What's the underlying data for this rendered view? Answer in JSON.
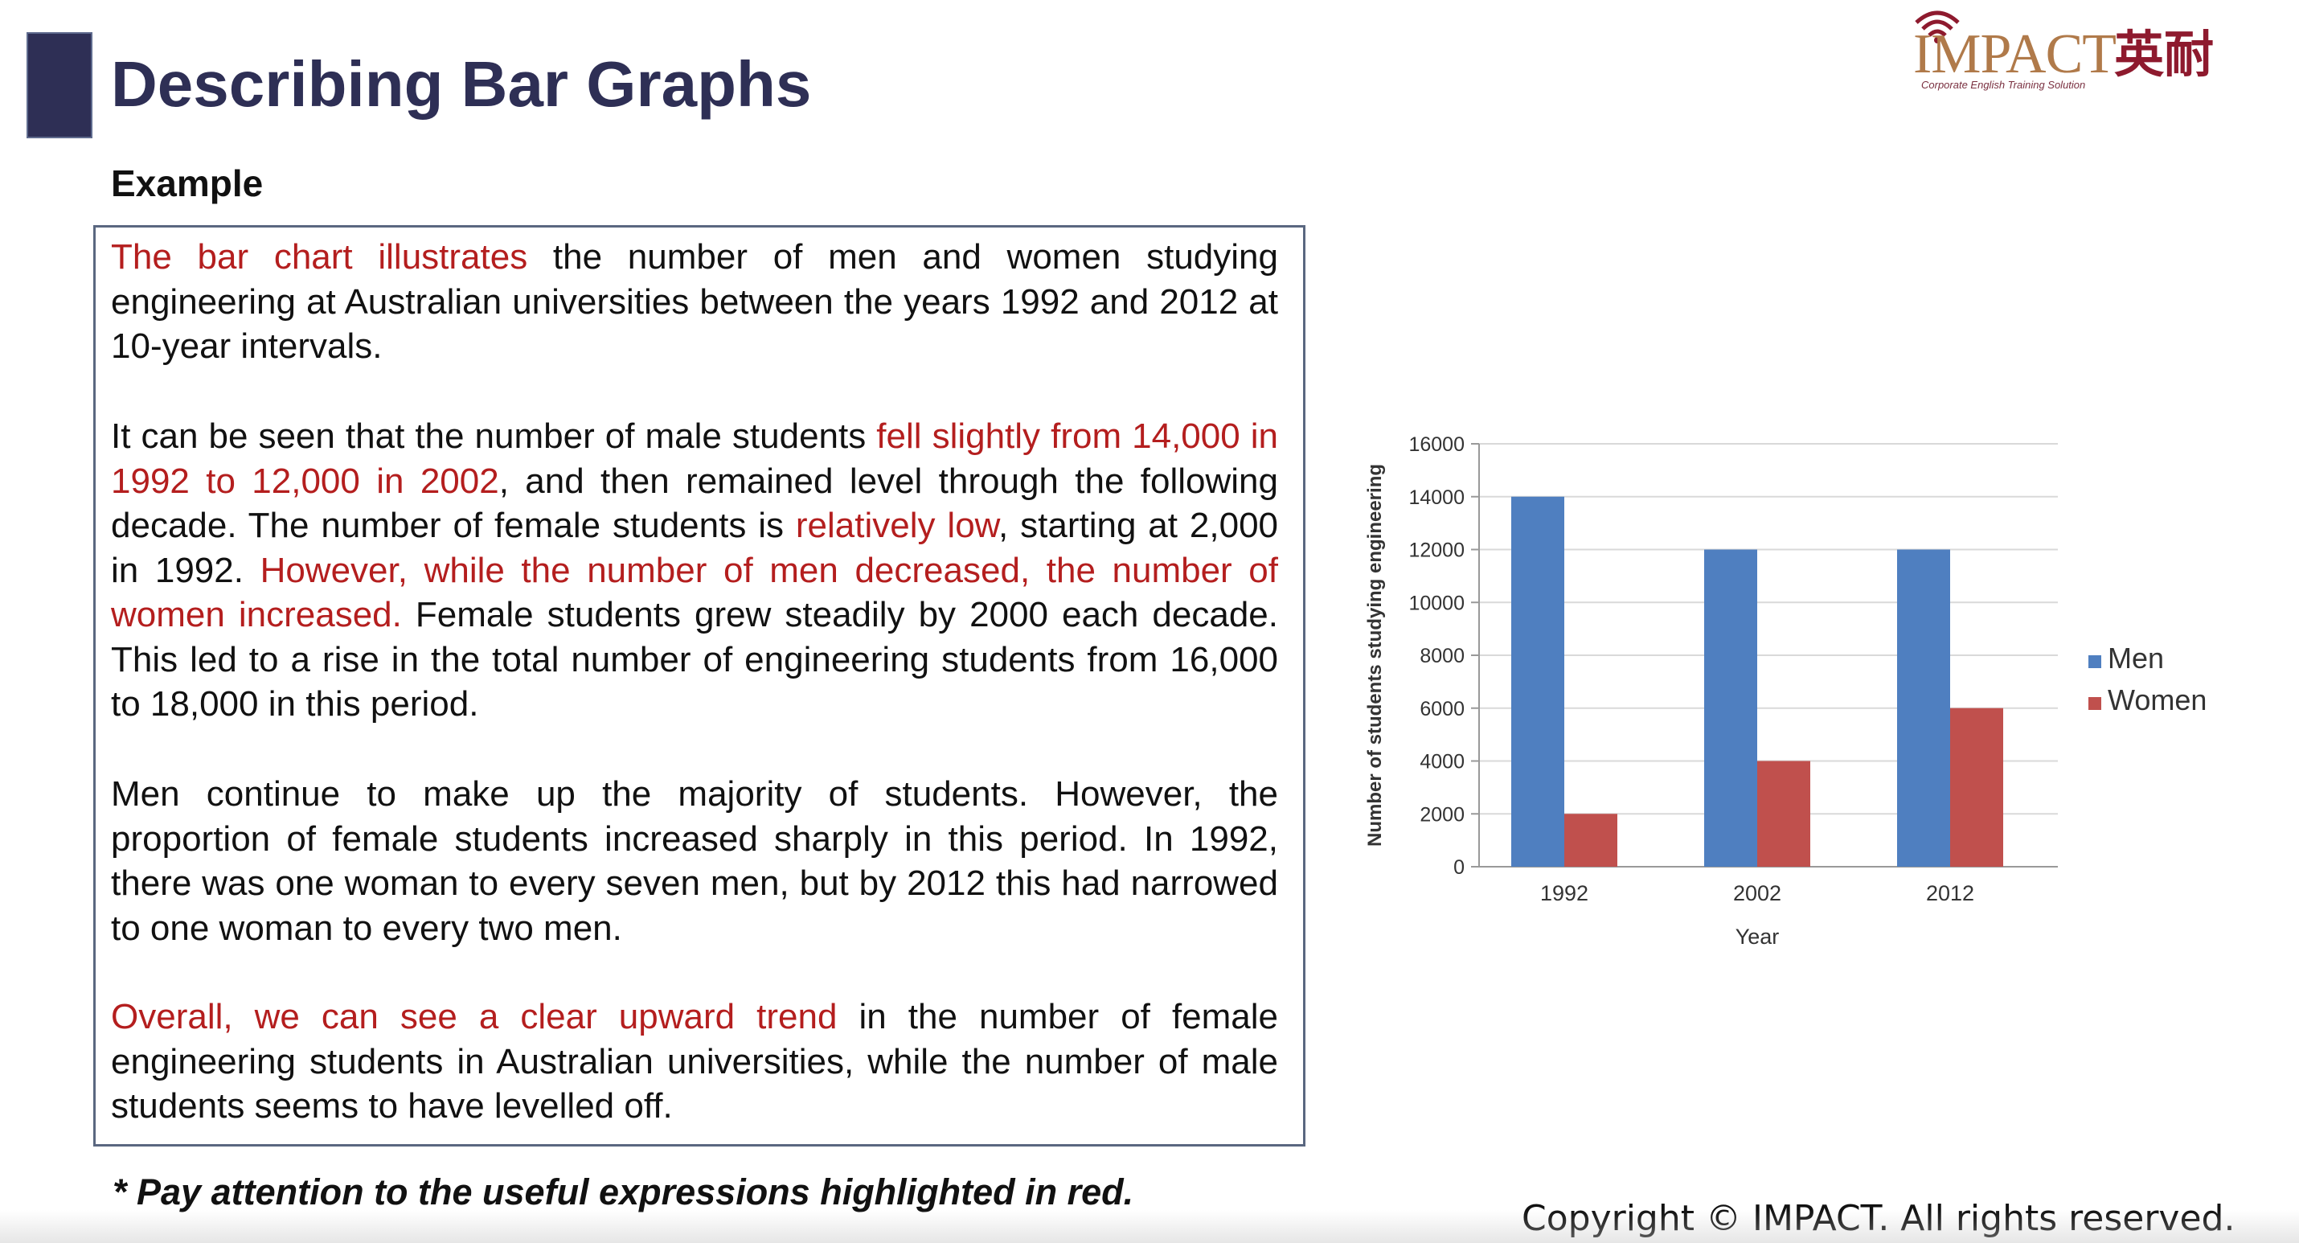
{
  "header": {
    "title": "Describing Bar Graphs"
  },
  "logo": {
    "brand": "IMPACT",
    "chinese": "英耐",
    "tagline": "Corporate English Training Solution"
  },
  "section": {
    "label": "Example"
  },
  "paragraphs": [
    [
      {
        "text": "The bar chart illustrates",
        "highlight": true
      },
      {
        "text": " the number of men and women studying engineering at Australian universities between the years 1992 and 2012 at 10-year intervals.",
        "highlight": false
      }
    ],
    [
      {
        "text": "It can be seen that the number of male students ",
        "highlight": false
      },
      {
        "text": "fell slightly from 14,000 in 1992 to 12,000 in 2002",
        "highlight": true
      },
      {
        "text": ", and then remained level through the following decade. The number of female students is ",
        "highlight": false
      },
      {
        "text": "relatively low",
        "highlight": true
      },
      {
        "text": ", starting at 2,000 in 1992. ",
        "highlight": false
      },
      {
        "text": "However, while the number of men decreased, the number of women increased.",
        "highlight": true
      },
      {
        "text": " Female students grew steadily by 2000 each decade. This led to a rise in the total number of engineering students from 16,000 to 18,000 in this period.",
        "highlight": false
      }
    ],
    [
      {
        "text": "Men continue to make up the majority of students. However, the proportion of female students increased sharply in this period. In 1992, there was one woman to every seven men, but by 2012 this had narrowed to one woman to every two men.",
        "highlight": false
      }
    ],
    [
      {
        "text": "Overall, we can see a clear upward trend",
        "highlight": true
      },
      {
        "text": " in the number of female engineering students in Australian universities, while the number of male students seems to have levelled off.",
        "highlight": false
      }
    ]
  ],
  "note": "* Pay attention to the useful expressions highlighted in red.",
  "footer": {
    "copyright": "Copyright © IMPACT. All rights reserved."
  },
  "colors": {
    "title": "#2e2f55",
    "highlight": "#b41e1e",
    "men": "#4f7fc0",
    "women": "#c0504d"
  },
  "chart_data": {
    "type": "bar",
    "categories": [
      "1992",
      "2002",
      "2012"
    ],
    "series": [
      {
        "name": "Men",
        "values": [
          14000,
          12000,
          12000
        ],
        "color": "#4f7fc0"
      },
      {
        "name": "Women",
        "values": [
          2000,
          4000,
          6000
        ],
        "color": "#c0504d"
      }
    ],
    "xlabel": "Year",
    "ylabel": "Number of students studying engineering",
    "ylim": [
      0,
      16000
    ],
    "yticks": [
      0,
      2000,
      4000,
      6000,
      8000,
      10000,
      12000,
      14000,
      16000
    ],
    "grid": true,
    "legend": "right"
  }
}
